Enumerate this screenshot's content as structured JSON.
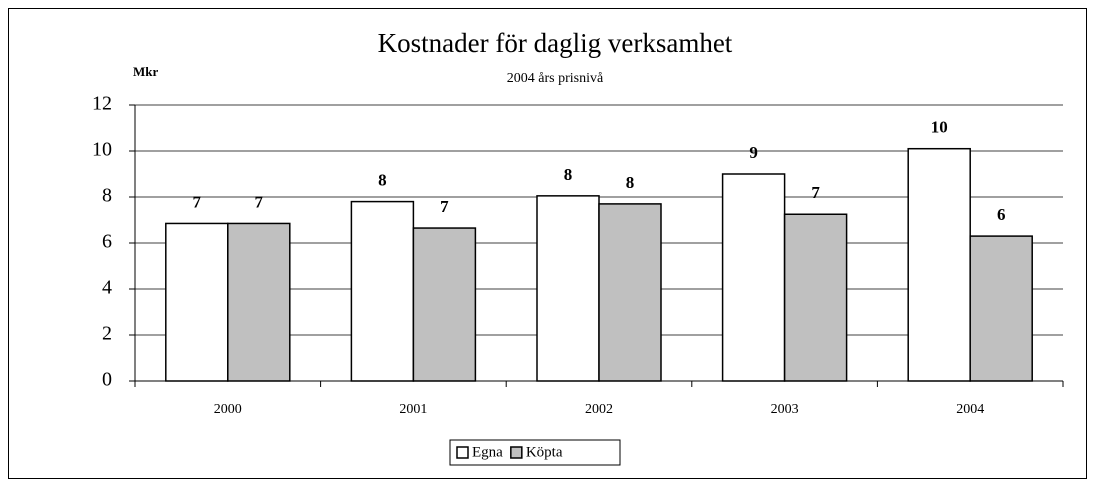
{
  "chart_data": {
    "type": "bar",
    "title": "Kostnader för daglig verksamhet",
    "subtitle": "2004 års prisnivå",
    "y_label": "Mkr",
    "categories": [
      "2000",
      "2001",
      "2002",
      "2003",
      "2004"
    ],
    "series": [
      {
        "name": "Egna",
        "color": "#ffffff",
        "values": [
          6.85,
          7.8,
          8.05,
          9.0,
          10.1
        ],
        "value_labels": [
          "7",
          "8",
          "8",
          "9",
          "10"
        ]
      },
      {
        "name": "Köpta",
        "color": "#c0c0c0",
        "values": [
          6.85,
          6.65,
          7.7,
          7.25,
          6.3
        ],
        "value_labels": [
          "7",
          "7",
          "8",
          "7",
          "6"
        ]
      }
    ],
    "ylim": [
      0,
      12
    ],
    "yticks": [
      0,
      2,
      4,
      6,
      8,
      10,
      12
    ],
    "grid": true,
    "legend": "bottom"
  }
}
